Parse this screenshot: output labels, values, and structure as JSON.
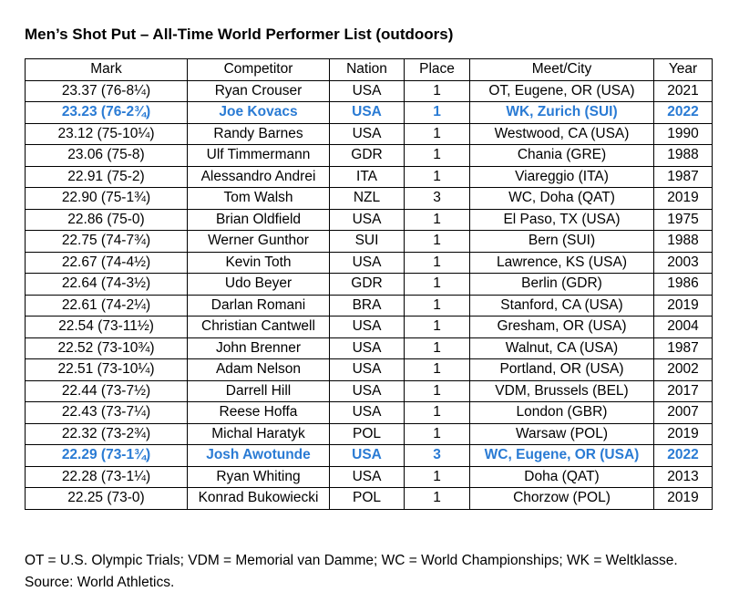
{
  "title": "Men’s Shot Put – All-Time World Performer List (outdoors)",
  "colors": {
    "highlight": "#2a7bd4",
    "border": "#000000",
    "text": "#000000"
  },
  "table": {
    "headers": [
      "Mark",
      "Competitor",
      "Nation",
      "Place",
      "Meet/City",
      "Year"
    ],
    "rows": [
      {
        "cells": [
          "23.37 (76-8¼)",
          "Ryan Crouser",
          "USA",
          "1",
          "OT, Eugene, OR (USA)",
          "2021"
        ],
        "highlight": false
      },
      {
        "cells": [
          "23.23 (76-2¾)",
          "Joe Kovacs",
          "USA",
          "1",
          "WK, Zurich (SUI)",
          "2022"
        ],
        "highlight": true
      },
      {
        "cells": [
          "23.12 (75-10¼)",
          "Randy Barnes",
          "USA",
          "1",
          "Westwood, CA (USA)",
          "1990"
        ],
        "highlight": false
      },
      {
        "cells": [
          "23.06 (75-8)",
          "Ulf Timmermann",
          "GDR",
          "1",
          "Chania (GRE)",
          "1988"
        ],
        "highlight": false
      },
      {
        "cells": [
          "22.91 (75-2)",
          "Alessandro Andrei",
          "ITA",
          "1",
          "Viareggio (ITA)",
          "1987"
        ],
        "highlight": false
      },
      {
        "cells": [
          "22.90 (75-1¾)",
          "Tom Walsh",
          "NZL",
          "3",
          "WC, Doha (QAT)",
          "2019"
        ],
        "highlight": false
      },
      {
        "cells": [
          "22.86 (75-0)",
          "Brian Oldfield",
          "USA",
          "1",
          "El Paso, TX (USA)",
          "1975"
        ],
        "highlight": false
      },
      {
        "cells": [
          "22.75 (74-7¾)",
          "Werner Gunthor",
          "SUI",
          "1",
          "Bern (SUI)",
          "1988"
        ],
        "highlight": false
      },
      {
        "cells": [
          "22.67 (74-4½)",
          "Kevin Toth",
          "USA",
          "1",
          "Lawrence, KS (USA)",
          "2003"
        ],
        "highlight": false
      },
      {
        "cells": [
          "22.64 (74-3½)",
          "Udo Beyer",
          "GDR",
          "1",
          "Berlin (GDR)",
          "1986"
        ],
        "highlight": false
      },
      {
        "cells": [
          "22.61 (74-2¼)",
          "Darlan Romani",
          "BRA",
          "1",
          "Stanford, CA (USA)",
          "2019"
        ],
        "highlight": false
      },
      {
        "cells": [
          "22.54 (73-11½)",
          "Christian Cantwell",
          "USA",
          "1",
          "Gresham, OR (USA)",
          "2004"
        ],
        "highlight": false
      },
      {
        "cells": [
          "22.52 (73-10¾)",
          "John Brenner",
          "USA",
          "1",
          "Walnut, CA (USA)",
          "1987"
        ],
        "highlight": false
      },
      {
        "cells": [
          "22.51 (73-10¼)",
          "Adam Nelson",
          "USA",
          "1",
          "Portland, OR (USA)",
          "2002"
        ],
        "highlight": false
      },
      {
        "cells": [
          "22.44 (73-7½)",
          "Darrell Hill",
          "USA",
          "1",
          "VDM, Brussels (BEL)",
          "2017"
        ],
        "highlight": false
      },
      {
        "cells": [
          "22.43 (73-7¼)",
          "Reese Hoffa",
          "USA",
          "1",
          "London (GBR)",
          "2007"
        ],
        "highlight": false
      },
      {
        "cells": [
          "22.32 (73-2¾)",
          "Michal Haratyk",
          "POL",
          "1",
          "Warsaw (POL)",
          "2019"
        ],
        "highlight": false
      },
      {
        "cells": [
          "22.29 (73-1¾)",
          "Josh Awotunde",
          "USA",
          "3",
          "WC, Eugene, OR (USA)",
          "2022"
        ],
        "highlight": true
      },
      {
        "cells": [
          "22.28 (73-1¼)",
          "Ryan Whiting",
          "USA",
          "1",
          "Doha (QAT)",
          "2013"
        ],
        "highlight": false
      },
      {
        "cells": [
          "22.25 (73-0)",
          "Konrad Bukowiecki",
          "POL",
          "1",
          "Chorzow (POL)",
          "2019"
        ],
        "highlight": false
      }
    ]
  },
  "footnote": "OT = U.S. Olympic Trials; VDM = Memorial van Damme; WC = World Championships; WK = Weltklasse. Source: World Athletics."
}
